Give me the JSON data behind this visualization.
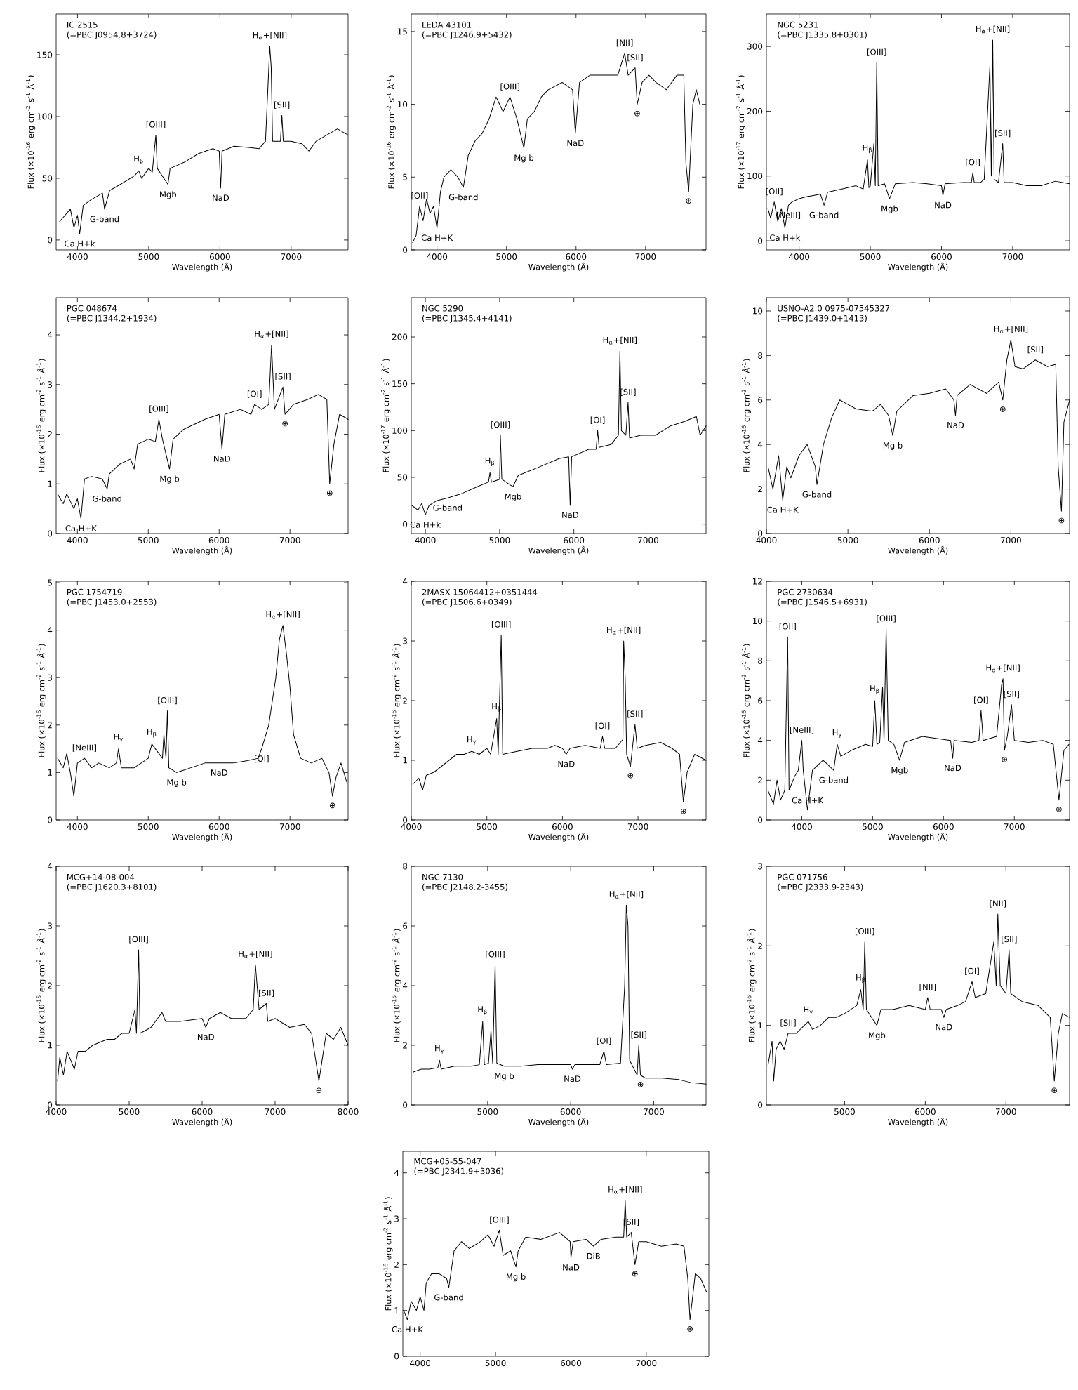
{
  "chart_data": [
    {
      "type": "line",
      "title": "IC 2515",
      "subtitle": "(=PBC J0954.8+3724)",
      "xlabel": "Wavelength (Å)",
      "ylabel": "Flux (×10$^{-16}$ erg cm$^{-2}$ s$^{-1}$ Å$^{-1}$)",
      "xlim": [
        3700,
        7800
      ],
      "ylim": [
        -8,
        183
      ],
      "xticks": [
        4000,
        5000,
        6000,
        7000
      ],
      "yticks": [
        0,
        50,
        100,
        150
      ],
      "series": [
        {
          "color": "#000000",
          "x": [
            3750,
            3900,
            3950,
            4000,
            4030,
            4080,
            4200,
            4350,
            4380,
            4450,
            4600,
            4800,
            4860,
            4900,
            5000,
            5050,
            5100,
            5120,
            5270,
            5300,
            5500,
            5700,
            5900,
            5990,
            6010,
            6030,
            6200,
            6400,
            6550,
            6640,
            6700,
            6720,
            6740,
            6850,
            6870,
            6890,
            7000,
            7150,
            7250,
            7350,
            7500,
            7650,
            7800
          ],
          "values": [
            15,
            25,
            10,
            20,
            5,
            28,
            33,
            38,
            25,
            40,
            45,
            52,
            56,
            50,
            58,
            55,
            85,
            58,
            45,
            58,
            63,
            70,
            74,
            72,
            42,
            72,
            76,
            75,
            74,
            80,
            157,
            140,
            80,
            80,
            101,
            80,
            80,
            78,
            72,
            80,
            85,
            90,
            85
          ]
        }
      ],
      "annotations": [
        {
          "text": "Ca H+k",
          "x": 4030,
          "y": 5
        },
        {
          "text": "G-band",
          "x": 4380,
          "y": 25
        },
        {
          "text": "H$_{β}$",
          "x": 4860,
          "y": 56
        },
        {
          "text": "[OIII]",
          "x": 5100,
          "y": 85
        },
        {
          "text": "Mgb",
          "x": 5270,
          "y": 45
        },
        {
          "text": "NaD",
          "x": 6010,
          "y": 42
        },
        {
          "text": "H$_{α}$+[NII]",
          "x": 6700,
          "y": 157
        },
        {
          "text": "[SII]",
          "x": 6870,
          "y": 101
        }
      ]
    },
    {
      "type": "line",
      "title": "LEDA 43101",
      "subtitle": "(=PBC J1246.9+5432)",
      "xlabel": "Wavelength (Å)",
      "ylabel": "Flux (×10$^{-16}$ erg cm$^{-2}$ s$^{-1}$ Å$^{-1}$)",
      "xlim": [
        3630,
        7870
      ],
      "ylim": [
        0,
        16.2
      ],
      "xticks": [
        4000,
        5000,
        6000,
        7000
      ],
      "yticks": [
        0,
        5,
        10,
        15
      ],
      "series": [
        {
          "color": "#000000",
          "x": [
            3650,
            3700,
            3750,
            3800,
            3850,
            3900,
            3950,
            4000,
            4050,
            4100,
            4200,
            4300,
            4380,
            4450,
            4550,
            4650,
            4750,
            4850,
            4950,
            5050,
            5150,
            5250,
            5300,
            5400,
            5500,
            5600,
            5800,
            5950,
            5990,
            6050,
            6200,
            6400,
            6600,
            6700,
            6750,
            6850,
            6880,
            6950,
            7050,
            7150,
            7300,
            7450,
            7550,
            7580,
            7620,
            7680,
            7730,
            7780
          ],
          "values": [
            0.5,
            1,
            3,
            2,
            3.5,
            2.5,
            3,
            1.5,
            4,
            5,
            5.5,
            5,
            4.3,
            6.5,
            7.5,
            8,
            9,
            10.5,
            9.5,
            10.5,
            9,
            7,
            9,
            9.5,
            10.5,
            11,
            11.5,
            11,
            8,
            11.5,
            12,
            12,
            12,
            13.5,
            12,
            12.5,
            10,
            11.5,
            12,
            11.5,
            11,
            12,
            12,
            6,
            4,
            10,
            11,
            10
          ]
        }
      ],
      "annotations": [
        {
          "text": "[OII]",
          "x": 3750,
          "y": 3
        },
        {
          "text": "Ca H+K",
          "x": 4000,
          "y": 1.5
        },
        {
          "text": "G-band",
          "x": 4380,
          "y": 4.3
        },
        {
          "text": "[OIII]",
          "x": 5050,
          "y": 10.5
        },
        {
          "text": "Mg b",
          "x": 5250,
          "y": 7
        },
        {
          "text": "NaD",
          "x": 5990,
          "y": 8
        },
        {
          "text": "[NII]",
          "x": 6700,
          "y": 13.5
        },
        {
          "text": "[SII]",
          "x": 6850,
          "y": 12.5
        },
        {
          "text": "⊕",
          "x": 6880,
          "y": 10
        },
        {
          "text": "⊕",
          "x": 7620,
          "y": 4
        }
      ]
    },
    {
      "type": "line",
      "title": "NGC 5231",
      "subtitle": "(=PBC J1335.8+0301)",
      "xlabel": "Wavelength (Å)",
      "ylabel": "Flux (×10$^{-17}$ erg cm$^{-2}$ s$^{-1}$ Å$^{-1}$)",
      "xlim": [
        3540,
        7800
      ],
      "ylim": [
        -14,
        350
      ],
      "xticks": [
        4000,
        5000,
        6000,
        7000
      ],
      "yticks": [
        0,
        100,
        200,
        300
      ],
      "series": [
        {
          "color": "#000000",
          "x": [
            3560,
            3600,
            3650,
            3700,
            3750,
            3800,
            3850,
            3900,
            4000,
            4100,
            4200,
            4300,
            4350,
            4400,
            4600,
            4800,
            4900,
            4960,
            4980,
            5000,
            5050,
            5070,
            5090,
            5110,
            5200,
            5270,
            5350,
            5600,
            5800,
            6000,
            6020,
            6050,
            6300,
            6420,
            6440,
            6460,
            6550,
            6600,
            6680,
            6700,
            6720,
            6740,
            6800,
            6860,
            6880,
            7000,
            7200,
            7400,
            7600,
            7800
          ],
          "values": [
            50,
            35,
            60,
            30,
            50,
            20,
            55,
            60,
            65,
            68,
            70,
            72,
            55,
            75,
            80,
            85,
            80,
            125,
            82,
            85,
            150,
            85,
            275,
            85,
            88,
            65,
            88,
            90,
            88,
            85,
            70,
            88,
            90,
            90,
            105,
            90,
            90,
            95,
            270,
            100,
            310,
            95,
            90,
            150,
            90,
            90,
            85,
            85,
            92,
            88
          ]
        }
      ],
      "annotations": [
        {
          "text": "[OII]",
          "x": 3650,
          "y": 60
        },
        {
          "text": "[NeIII]",
          "x": 3850,
          "y": 55
        },
        {
          "text": "Ca H+k",
          "x": 3800,
          "y": 20
        },
        {
          "text": "G-band",
          "x": 4350,
          "y": 55
        },
        {
          "text": "H$_{β}$",
          "x": 4960,
          "y": 125
        },
        {
          "text": "[OIII]",
          "x": 5090,
          "y": 275
        },
        {
          "text": "Mgb",
          "x": 5270,
          "y": 65
        },
        {
          "text": "NaD",
          "x": 6020,
          "y": 70
        },
        {
          "text": "[OI]",
          "x": 6440,
          "y": 105
        },
        {
          "text": "H$_{α}$+[NII]",
          "x": 6720,
          "y": 310
        },
        {
          "text": "[SII]",
          "x": 6860,
          "y": 150
        }
      ]
    },
    {
      "type": "line",
      "title": "PGC 048674",
      "subtitle": "(=PBC J1344.2+1934)",
      "xlabel": "Wavelength (Å)",
      "ylabel": "Flux (×10$^{-16}$ erg cm$^{-2}$ s$^{-1}$ Å$^{-1}$)",
      "xlim": [
        3700,
        7820
      ],
      "ylim": [
        0,
        4.75
      ],
      "xticks": [
        4000,
        5000,
        6000,
        7000
      ],
      "yticks": [
        0,
        1,
        2,
        3,
        4
      ],
      "series": [
        {
          "color": "#000000",
          "x": [
            3720,
            3800,
            3850,
            3950,
            4000,
            4050,
            4100,
            4200,
            4350,
            4420,
            4450,
            4600,
            4750,
            4800,
            4850,
            5000,
            5100,
            5150,
            5200,
            5300,
            5350,
            5500,
            5800,
            6000,
            6040,
            6080,
            6300,
            6450,
            6500,
            6600,
            6700,
            6740,
            6780,
            6900,
            6930,
            7050,
            7250,
            7400,
            7520,
            7560,
            7620,
            7700,
            7820
          ],
          "values": [
            0.8,
            0.6,
            0.8,
            0.5,
            0.7,
            0.3,
            1.1,
            1.15,
            1.1,
            0.9,
            1.2,
            1.4,
            1.5,
            1.3,
            1.8,
            1.9,
            1.85,
            2.3,
            1.9,
            1.3,
            1.9,
            2.1,
            2.3,
            2.4,
            1.7,
            2.4,
            2.5,
            2.4,
            2.6,
            2.5,
            2.6,
            3.8,
            2.5,
            2.95,
            2.4,
            2.6,
            2.7,
            2.8,
            2.7,
            1.0,
            1.8,
            2.4,
            2.3
          ]
        }
      ],
      "annotations": [
        {
          "text": "Ca H+K",
          "x": 4050,
          "y": 0.3
        },
        {
          "text": "G-band",
          "x": 4420,
          "y": 0.9
        },
        {
          "text": "[OIII]",
          "x": 5150,
          "y": 2.3
        },
        {
          "text": "Mg b",
          "x": 5300,
          "y": 1.3
        },
        {
          "text": "NaD",
          "x": 6040,
          "y": 1.7
        },
        {
          "text": "[OI]",
          "x": 6500,
          "y": 2.6
        },
        {
          "text": "H$_{α}$+[NII]",
          "x": 6740,
          "y": 3.8
        },
        {
          "text": "[SII]",
          "x": 6900,
          "y": 2.95
        },
        {
          "text": "⊕",
          "x": 6930,
          "y": 2.4
        },
        {
          "text": "⊕",
          "x": 7560,
          "y": 1.0
        }
      ]
    },
    {
      "type": "line",
      "title": "NGC 5290",
      "subtitle": "(=PBC J1345.4+4141)",
      "xlabel": "Wavelength (Å)",
      "ylabel": "Flux (×10$^{-17}$ erg cm$^{-2}$ s$^{-1}$ Å$^{-1}$)",
      "xlim": [
        3810,
        7780
      ],
      "ylim": [
        -10,
        242
      ],
      "xticks": [
        4000,
        5000,
        6000,
        7000
      ],
      "yticks": [
        0,
        50,
        100,
        150,
        200
      ],
      "series": [
        {
          "color": "#000000",
          "x": [
            3820,
            3900,
            3950,
            4000,
            4050,
            4150,
            4300,
            4500,
            4700,
            4850,
            4870,
            4890,
            5000,
            5010,
            5030,
            5180,
            5250,
            5500,
            5800,
            5930,
            5950,
            5970,
            6200,
            6300,
            6320,
            6340,
            6500,
            6600,
            6620,
            6640,
            6700,
            6730,
            6750,
            6900,
            7100,
            7300,
            7500,
            7650,
            7700,
            7780
          ],
          "values": [
            20,
            15,
            22,
            10,
            20,
            25,
            28,
            33,
            40,
            45,
            55,
            45,
            48,
            95,
            48,
            40,
            52,
            60,
            70,
            72,
            20,
            72,
            80,
            80,
            100,
            82,
            85,
            95,
            185,
            100,
            95,
            130,
            92,
            95,
            95,
            105,
            110,
            115,
            95,
            105
          ]
        }
      ],
      "annotations": [
        {
          "text": "Ca H+k",
          "x": 4000,
          "y": 10
        },
        {
          "text": "G-band",
          "x": 4300,
          "y": 28
        },
        {
          "text": "H$_{β}$",
          "x": 4870,
          "y": 55
        },
        {
          "text": "[OIII]",
          "x": 5010,
          "y": 95
        },
        {
          "text": "Mgb",
          "x": 5180,
          "y": 40
        },
        {
          "text": "NaD",
          "x": 5950,
          "y": 20
        },
        {
          "text": "[OI]",
          "x": 6320,
          "y": 100
        },
        {
          "text": "H$_{α}$+[NII]",
          "x": 6620,
          "y": 185
        },
        {
          "text": "[SII]",
          "x": 6730,
          "y": 130
        }
      ]
    },
    {
      "type": "line",
      "title": "USNO-A2.0 0975-07545327",
      "subtitle": "(=PBC J1439.0+1413)",
      "xlabel": "Wavelength (Å)",
      "ylabel": "Flux (×10$^{-16}$ erg cm$^{-2}$ s$^{-1}$ Å$^{-1}$)",
      "xlim": [
        4000,
        7720
      ],
      "ylim": [
        0,
        10.6
      ],
      "xticks": [
        4000,
        5000,
        6000,
        7000
      ],
      "yticks": [
        0,
        2,
        4,
        6,
        8,
        10
      ],
      "series": [
        {
          "color": "#000000",
          "x": [
            4020,
            4080,
            4150,
            4200,
            4250,
            4300,
            4400,
            4500,
            4600,
            4620,
            4700,
            4800,
            4900,
            5000,
            5100,
            5300,
            5400,
            5500,
            5550,
            5600,
            5800,
            6000,
            6200,
            6300,
            6320,
            6340,
            6500,
            6700,
            6850,
            6900,
            6950,
            7000,
            7050,
            7150,
            7300,
            7450,
            7550,
            7580,
            7620,
            7650,
            7720
          ],
          "values": [
            3,
            2,
            3.5,
            1.5,
            3,
            2.5,
            3.5,
            4,
            3,
            2.2,
            4,
            5.2,
            6,
            5.8,
            5.6,
            5.5,
            5.8,
            5.3,
            4.4,
            5.5,
            6.2,
            6.3,
            6.5,
            6.0,
            5.3,
            6.2,
            6.7,
            6.3,
            6.8,
            6.0,
            7.8,
            8.7,
            7.5,
            7.4,
            7.8,
            7.5,
            7.6,
            3,
            1,
            5,
            6
          ]
        }
      ],
      "annotations": [
        {
          "text": "Ca H+K",
          "x": 4200,
          "y": 1.5
        },
        {
          "text": "G-band",
          "x": 4620,
          "y": 2.2
        },
        {
          "text": "Mg b",
          "x": 5550,
          "y": 4.4
        },
        {
          "text": "NaD",
          "x": 6320,
          "y": 5.3
        },
        {
          "text": "H$_{α}$+[NII]",
          "x": 7000,
          "y": 8.7
        },
        {
          "text": "[SII]",
          "x": 7300,
          "y": 7.8
        },
        {
          "text": "⊕",
          "x": 6900,
          "y": 6.0
        },
        {
          "text": "⊕",
          "x": 7620,
          "y": 1
        }
      ]
    },
    {
      "type": "line",
      "title": "PGC 1754719",
      "subtitle": "(=PBC J1453.0+2553)",
      "xlabel": "Wavelength (Å)",
      "ylabel": "Flux (×10$^{-16}$ erg cm$^{-2}$ s$^{-1}$ Å$^{-1}$)",
      "xlim": [
        3700,
        7820
      ],
      "ylim": [
        0,
        5.03
      ],
      "xticks": [
        4000,
        5000,
        6000,
        7000
      ],
      "yticks": [
        0,
        1,
        2,
        3,
        4,
        5
      ],
      "series": [
        {
          "color": "#000000",
          "x": [
            3720,
            3800,
            3850,
            3900,
            3950,
            4000,
            4100,
            4200,
            4300,
            4450,
            4550,
            4580,
            4620,
            4800,
            4900,
            5000,
            5050,
            5100,
            5200,
            5220,
            5250,
            5270,
            5290,
            5400,
            5600,
            5800,
            6000,
            6200,
            6400,
            6550,
            6600,
            6700,
            6800,
            6850,
            6900,
            6950,
            7000,
            7050,
            7150,
            7300,
            7450,
            7550,
            7600,
            7650,
            7720,
            7800
          ],
          "values": [
            1.3,
            1.1,
            1.4,
            1.0,
            0.5,
            1.2,
            1.3,
            1.1,
            1.2,
            1.1,
            1.2,
            1.5,
            1.1,
            1.1,
            1.2,
            1.3,
            1.6,
            1.5,
            1.3,
            1.8,
            1.3,
            2.3,
            1.1,
            1.0,
            1.1,
            1.2,
            1.2,
            1.2,
            1.25,
            1.3,
            1.5,
            2.0,
            3.0,
            3.8,
            4.1,
            3.5,
            2.8,
            1.8,
            1.3,
            1.2,
            1.3,
            1.0,
            0.5,
            0.9,
            1.2,
            0.8
          ]
        }
      ],
      "annotations": [
        {
          "text": "[NeIII]",
          "x": 4100,
          "y": 1.3
        },
        {
          "text": "H$_{γ}$",
          "x": 4580,
          "y": 1.5
        },
        {
          "text": "H$_{β}$",
          "x": 5050,
          "y": 1.6
        },
        {
          "text": "[OIII]",
          "x": 5270,
          "y": 2.3
        },
        {
          "text": "Mg b",
          "x": 5400,
          "y": 1.0
        },
        {
          "text": "NaD",
          "x": 6000,
          "y": 1.2
        },
        {
          "text": "[OI]",
          "x": 6600,
          "y": 1.5
        },
        {
          "text": "H$_{α}$+[NII]",
          "x": 6900,
          "y": 4.1
        },
        {
          "text": "⊕",
          "x": 7600,
          "y": 0.5
        }
      ]
    },
    {
      "type": "line",
      "title": "2MASX 15064412+0351444",
      "subtitle": "(=PBC J1506.6+0349)",
      "xlabel": "Wavelength (Å)",
      "ylabel": "Flux (×10$^{-16}$ erg cm$^{-2}$ s$^{-1}$ Å$^{-1}$)",
      "xlim": [
        4000,
        7900
      ],
      "ylim": [
        0,
        4
      ],
      "xticks": [
        4000,
        5000,
        6000,
        7000
      ],
      "yticks": [
        0,
        1,
        2,
        3,
        4
      ],
      "series": [
        {
          "color": "#000000",
          "x": [
            4020,
            4100,
            4150,
            4200,
            4300,
            4400,
            4500,
            4600,
            4700,
            4800,
            4900,
            5000,
            5050,
            5130,
            5150,
            5190,
            5210,
            5400,
            5600,
            5800,
            5900,
            6000,
            6050,
            6100,
            6300,
            6500,
            6530,
            6560,
            6700,
            6800,
            6810,
            6830,
            6850,
            6900,
            6960,
            6990,
            7100,
            7300,
            7450,
            7550,
            7600,
            7650,
            7750,
            7900
          ],
          "values": [
            0.6,
            0.7,
            0.5,
            0.75,
            0.8,
            0.9,
            1.0,
            1.1,
            1.1,
            1.15,
            1.1,
            1.2,
            1.1,
            1.7,
            1.1,
            3.1,
            1.1,
            1.15,
            1.2,
            1.2,
            1.25,
            1.2,
            1.1,
            1.2,
            1.25,
            1.2,
            1.4,
            1.2,
            1.2,
            1.35,
            3.0,
            2.4,
            1.1,
            0.9,
            1.6,
            1.2,
            1.25,
            1.3,
            1.2,
            1.1,
            0.3,
            0.8,
            1.1,
            1.0
          ]
        }
      ],
      "annotations": [
        {
          "text": "H$_{γ}$",
          "x": 4800,
          "y": 1.15
        },
        {
          "text": "H$_{β}$",
          "x": 5130,
          "y": 1.7
        },
        {
          "text": "[OIII]",
          "x": 5190,
          "y": 3.1
        },
        {
          "text": "NaD",
          "x": 6050,
          "y": 1.1
        },
        {
          "text": "[OI]",
          "x": 6530,
          "y": 1.4
        },
        {
          "text": "H$_{α}$+[NII]",
          "x": 6810,
          "y": 3.0
        },
        {
          "text": "[SII]",
          "x": 6960,
          "y": 1.6
        },
        {
          "text": "⊕",
          "x": 6900,
          "y": 0.9
        },
        {
          "text": "⊕",
          "x": 7600,
          "y": 0.3
        }
      ]
    },
    {
      "type": "line",
      "title": "PGC 2730634",
      "subtitle": "(=PBC J1546.5+6931)",
      "xlabel": "Wavelength (Å)",
      "ylabel": "Flux (×10$^{-16}$ erg cm$^{-2}$ s$^{-1}$ Å$^{-1}$)",
      "xlim": [
        3500,
        7780
      ],
      "ylim": [
        0,
        12
      ],
      "xticks": [
        4000,
        5000,
        6000,
        7000
      ],
      "yticks": [
        0,
        2,
        4,
        6,
        8,
        10,
        12
      ],
      "series": [
        {
          "color": "#000000",
          "x": [
            3520,
            3600,
            3650,
            3700,
            3760,
            3800,
            3820,
            3900,
            3950,
            4000,
            4020,
            4080,
            4150,
            4300,
            4450,
            4500,
            4550,
            4700,
            4900,
            5000,
            5030,
            5060,
            5100,
            5140,
            5160,
            5190,
            5220,
            5300,
            5380,
            5450,
            5700,
            5900,
            6100,
            6130,
            6150,
            6400,
            6500,
            6530,
            6560,
            6750,
            6820,
            6840,
            6860,
            6900,
            6960,
            7000,
            7200,
            7400,
            7550,
            7630,
            7700,
            7770
          ],
          "values": [
            1.5,
            0.8,
            2,
            1,
            1.5,
            9.2,
            1.5,
            2.2,
            2.5,
            4.0,
            2.5,
            0.5,
            2.5,
            3,
            2.5,
            3.8,
            3.2,
            3.5,
            3.8,
            3.7,
            6,
            3.8,
            3.9,
            6.7,
            4,
            9.6,
            4,
            3.8,
            3.0,
            3.9,
            4.2,
            4.1,
            4.0,
            3.1,
            4.0,
            3.9,
            4.0,
            5.5,
            4.0,
            4.2,
            6.8,
            7.1,
            3.5,
            4.2,
            5.8,
            4.0,
            3.9,
            4.0,
            3.8,
            1.0,
            3.5,
            3.8
          ]
        }
      ],
      "annotations": [
        {
          "text": "[OII]",
          "x": 3800,
          "y": 9.2
        },
        {
          "text": "[NeIII]",
          "x": 4000,
          "y": 4.0
        },
        {
          "text": "H$_{γ}$",
          "x": 4500,
          "y": 3.8
        },
        {
          "text": "G-band",
          "x": 4450,
          "y": 2.5
        },
        {
          "text": "Ca H+K",
          "x": 4080,
          "y": 0.5
        },
        {
          "text": "H$_{β}$",
          "x": 5030,
          "y": 6
        },
        {
          "text": "[OIII]",
          "x": 5190,
          "y": 9.6
        },
        {
          "text": "Mgb",
          "x": 5380,
          "y": 3.0
        },
        {
          "text": "NaD",
          "x": 6130,
          "y": 3.1
        },
        {
          "text": "[OI]",
          "x": 6530,
          "y": 5.5
        },
        {
          "text": "H$_{α}$+[NII]",
          "x": 6840,
          "y": 7.1
        },
        {
          "text": "[SII]",
          "x": 6960,
          "y": 5.8
        },
        {
          "text": "⊕",
          "x": 6860,
          "y": 3.5
        },
        {
          "text": "⊕",
          "x": 7630,
          "y": 1.0
        }
      ]
    },
    {
      "type": "line",
      "title": "MCG+14-08-004",
      "subtitle": "(=PBC J1620.3+8101)",
      "xlabel": "Wavelength (Å)",
      "ylabel": "Flux (×10$^{-15}$ erg cm$^{-2}$ s$^{-1}$ Å$^{-1}$)",
      "xlim": [
        4000,
        8000
      ],
      "ylim": [
        0,
        4
      ],
      "xticks": [
        4000,
        5000,
        6000,
        7000,
        8000
      ],
      "yticks": [
        0,
        1,
        2,
        3,
        4
      ],
      "series": [
        {
          "color": "#000000",
          "x": [
            4020,
            4050,
            4100,
            4150,
            4250,
            4300,
            4400,
            4500,
            4600,
            4700,
            4800,
            4900,
            5000,
            5080,
            5100,
            5130,
            5150,
            5300,
            5450,
            5500,
            5700,
            6000,
            6050,
            6100,
            6250,
            6400,
            6600,
            6700,
            6730,
            6780,
            6880,
            6900,
            7000,
            7200,
            7400,
            7500,
            7600,
            7650,
            7700,
            7800,
            7900,
            8000
          ],
          "values": [
            0.4,
            0.8,
            0.5,
            0.9,
            0.6,
            0.9,
            0.9,
            1.0,
            1.05,
            1.1,
            1.1,
            1.2,
            1.2,
            1.6,
            1.2,
            2.6,
            1.2,
            1.3,
            1.55,
            1.4,
            1.4,
            1.45,
            1.3,
            1.45,
            1.55,
            1.45,
            1.45,
            1.6,
            2.35,
            1.6,
            1.7,
            1.4,
            1.45,
            1.3,
            1.35,
            1.2,
            0.4,
            0.8,
            1.2,
            1.1,
            1.3,
            1.0
          ]
        }
      ],
      "annotations": [
        {
          "text": "[OIII]",
          "x": 5130,
          "y": 2.6
        },
        {
          "text": "NaD",
          "x": 6050,
          "y": 1.3
        },
        {
          "text": "H$_{α}$+[NII]",
          "x": 6730,
          "y": 2.35
        },
        {
          "text": "[SII]",
          "x": 6880,
          "y": 1.7
        },
        {
          "text": "⊕",
          "x": 7600,
          "y": 0.4
        }
      ]
    },
    {
      "type": "line",
      "title": "NGC 7130",
      "subtitle": "(=PBC J2148.2-3455)",
      "xlabel": "Wavelength (Å)",
      "ylabel": "Flux (×10$^{-15}$ erg cm$^{-2}$ s$^{-1}$ Å$^{-1}$)",
      "xlim": [
        4080,
        7630
      ],
      "ylim": [
        0,
        8
      ],
      "xticks": [
        5000,
        6000,
        7000
      ],
      "yticks": [
        0,
        2,
        4,
        6,
        8
      ],
      "series": [
        {
          "color": "#000000",
          "x": [
            4100,
            4200,
            4300,
            4400,
            4420,
            4440,
            4600,
            4800,
            4900,
            4940,
            4960,
            5010,
            5040,
            5060,
            5090,
            5110,
            5200,
            5400,
            5600,
            5800,
            6000,
            6020,
            6050,
            6200,
            6350,
            6400,
            6430,
            6600,
            6650,
            6670,
            6690,
            6710,
            6800,
            6820,
            6840,
            6900,
            7100,
            7300,
            7450,
            7630
          ],
          "values": [
            1.1,
            1.2,
            1.2,
            1.25,
            1.5,
            1.2,
            1.3,
            1.3,
            1.35,
            2.8,
            1.35,
            1.4,
            2.5,
            1.4,
            4.7,
            1.4,
            1.3,
            1.3,
            1.35,
            1.35,
            1.35,
            1.2,
            1.35,
            1.35,
            1.35,
            1.8,
            1.35,
            1.4,
            4,
            6.7,
            6.0,
            1.5,
            1.0,
            2.0,
            1.0,
            0.9,
            0.9,
            0.85,
            0.75,
            0.7
          ]
        }
      ],
      "annotations": [
        {
          "text": "H$_{γ}$",
          "x": 4420,
          "y": 1.5
        },
        {
          "text": "H$_{β}$",
          "x": 4940,
          "y": 2.8
        },
        {
          "text": "[OIII]",
          "x": 5090,
          "y": 4.7
        },
        {
          "text": "Mg b",
          "x": 5200,
          "y": 1.3
        },
        {
          "text": "NaD",
          "x": 6020,
          "y": 1.2
        },
        {
          "text": "[OI]",
          "x": 6400,
          "y": 1.8
        },
        {
          "text": "H$_{α}$+[NII]",
          "x": 6670,
          "y": 6.7
        },
        {
          "text": "[SII]",
          "x": 6820,
          "y": 2.0
        },
        {
          "text": "⊕",
          "x": 6840,
          "y": 1.0
        }
      ]
    },
    {
      "type": "line",
      "title": "PGC 071756",
      "subtitle": "(=PBC J2333.9-2343)",
      "xlabel": "Wavelength (Å)",
      "ylabel": "Flux (×10$^{-16}$ erg cm$^{-2}$ s$^{-1}$ Å$^{-1}$)",
      "xlim": [
        4030,
        7790
      ],
      "ylim": [
        0,
        3
      ],
      "xticks": [
        5000,
        6000,
        7000
      ],
      "yticks": [
        0,
        1,
        2,
        3
      ],
      "series": [
        {
          "color": "#000000",
          "x": [
            4050,
            4100,
            4120,
            4150,
            4200,
            4250,
            4300,
            4400,
            4500,
            4550,
            4600,
            4700,
            4800,
            4900,
            5000,
            5150,
            5200,
            5230,
            5250,
            5270,
            5400,
            5450,
            5600,
            5800,
            6000,
            6030,
            6060,
            6200,
            6230,
            6260,
            6400,
            6500,
            6580,
            6620,
            6750,
            6850,
            6880,
            6900,
            6930,
            7000,
            7040,
            7060,
            7200,
            7400,
            7550,
            7600,
            7650,
            7700,
            7790
          ],
          "values": [
            0.5,
            0.8,
            0.3,
            0.7,
            0.8,
            0.7,
            0.9,
            0.9,
            1.0,
            1.05,
            0.95,
            1.0,
            1.1,
            1.1,
            1.15,
            1.25,
            1.45,
            1.2,
            2.05,
            1.2,
            1.0,
            1.2,
            1.2,
            1.25,
            1.2,
            1.35,
            1.2,
            1.2,
            1.1,
            1.2,
            1.25,
            1.3,
            1.55,
            1.35,
            1.4,
            2.05,
            1.5,
            2.4,
            1.5,
            1.4,
            1.95,
            1.4,
            1.3,
            1.25,
            1.1,
            0.3,
            0.9,
            1.15,
            1.1
          ]
        }
      ],
      "annotations": [
        {
          "text": "[SII]",
          "x": 4300,
          "y": 0.9
        },
        {
          "text": "H$_{γ}$",
          "x": 4550,
          "y": 1.05
        },
        {
          "text": "H$_{β}$",
          "x": 5200,
          "y": 1.45
        },
        {
          "text": "[OIII]",
          "x": 5250,
          "y": 2.05
        },
        {
          "text": "Mgb",
          "x": 5400,
          "y": 1.0
        },
        {
          "text": "[NII]",
          "x": 6030,
          "y": 1.35
        },
        {
          "text": "NaD",
          "x": 6230,
          "y": 1.1
        },
        {
          "text": "[OI]",
          "x": 6580,
          "y": 1.55
        },
        {
          "text": "[NII]",
          "x": 6900,
          "y": 2.4
        },
        {
          "text": "[SII]",
          "x": 7040,
          "y": 1.95
        },
        {
          "text": "⊕",
          "x": 7600,
          "y": 0.3
        }
      ]
    },
    {
      "type": "line",
      "title": "MCG+05-55-047",
      "subtitle": "(=PBC J2341.9+3036)",
      "ylabel": "Flux (×10$^{-16}$ erg cm$^{-2}$ s$^{-1}$ Å$^{-1}$)",
      "xlim": [
        3770,
        7830
      ],
      "ylim": [
        0,
        4.47
      ],
      "xticks": [
        4000,
        5000,
        6000,
        7000
      ],
      "yticks": [
        0,
        1,
        2,
        3,
        4
      ],
      "series": [
        {
          "color": "#000000",
          "x": [
            3780,
            3830,
            3880,
            3950,
            4000,
            4050,
            4080,
            4150,
            4250,
            4350,
            4380,
            4450,
            4550,
            4650,
            4800,
            4900,
            4980,
            5050,
            5100,
            5200,
            5270,
            5300,
            5400,
            5600,
            5850,
            5990,
            6000,
            6030,
            6200,
            6300,
            6400,
            6600,
            6700,
            6720,
            6740,
            6800,
            6850,
            6900,
            7000,
            7200,
            7400,
            7500,
            7550,
            7580,
            7650,
            7720,
            7800
          ],
          "values": [
            1.0,
            0.8,
            1.2,
            1.0,
            1.3,
            1.0,
            1.6,
            1.8,
            1.8,
            1.7,
            1.5,
            2.3,
            2.5,
            2.35,
            2.5,
            2.65,
            2.4,
            2.75,
            2.2,
            2.3,
            1.95,
            2.3,
            2.6,
            2.55,
            2.7,
            2.5,
            2.15,
            2.5,
            2.55,
            2.4,
            2.55,
            2.6,
            2.6,
            3.4,
            2.6,
            2.7,
            2.0,
            2.5,
            2.5,
            2.4,
            2.45,
            2.4,
            1.7,
            0.8,
            1.8,
            1.7,
            1.4
          ]
        }
      ],
      "annotations": [
        {
          "text": "Ca H+K",
          "x": 3830,
          "y": 0.8
        },
        {
          "text": "G-band",
          "x": 4380,
          "y": 1.5
        },
        {
          "text": "[OIII]",
          "x": 5050,
          "y": 2.75
        },
        {
          "text": "Mg b",
          "x": 5270,
          "y": 1.95
        },
        {
          "text": "NaD",
          "x": 6000,
          "y": 2.15
        },
        {
          "text": "DiB",
          "x": 6300,
          "y": 2.4
        },
        {
          "text": "H$_{α}$+[NII]",
          "x": 6720,
          "y": 3.4
        },
        {
          "text": "[SII]",
          "x": 6800,
          "y": 2.7
        },
        {
          "text": "⊕",
          "x": 6850,
          "y": 2.0
        },
        {
          "text": "⊕",
          "x": 7580,
          "y": 0.8
        }
      ]
    }
  ]
}
